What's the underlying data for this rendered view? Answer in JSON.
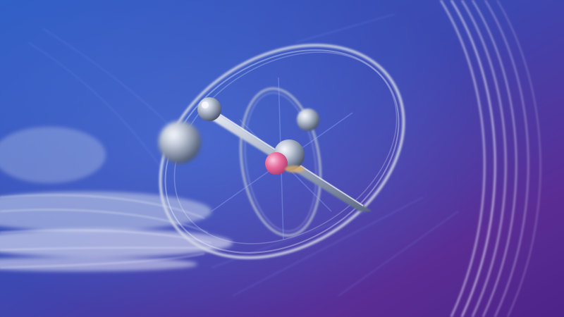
{
  "scene": {
    "subject": "abstract-atom-model",
    "palette": {
      "background_blue": "#2f5fc7",
      "background_mid": "#3b47b0",
      "background_purple": "#5a2a92",
      "background_deep_purple": "#4c1f86",
      "metal_light": "#eef2f7",
      "metal_mid": "#a9b4c4",
      "metal_dark": "#5f6b80",
      "ring_silver": "#d8dde6",
      "nucleus_pink": "#f06a9a",
      "nucleus_gold": "#e0b06a"
    }
  }
}
